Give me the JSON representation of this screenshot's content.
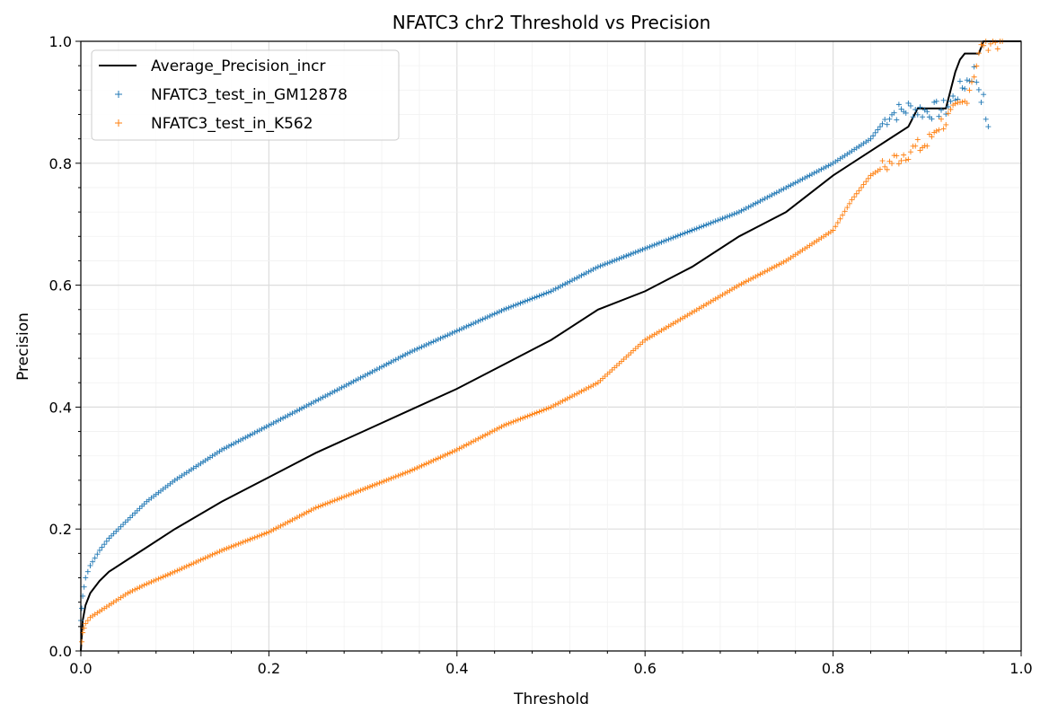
{
  "chart_data": {
    "type": "line",
    "title": "NFATC3 chr2 Threshold vs Precision",
    "xlabel": "Threshold",
    "ylabel": "Precision",
    "xlim": [
      0.0,
      1.0
    ],
    "ylim": [
      0.0,
      1.0
    ],
    "xticks": [
      "0.0",
      "0.2",
      "0.4",
      "0.6",
      "0.8",
      "1.0"
    ],
    "yticks": [
      "0.0",
      "0.2",
      "0.4",
      "0.6",
      "0.8",
      "1.0"
    ],
    "grid": true,
    "legend_position": "top-left",
    "series": [
      {
        "name": "Average_Precision_incr",
        "kind": "line",
        "color": "#000000",
        "points": [
          [
            0.0,
            0.0
          ],
          [
            0.002,
            0.05
          ],
          [
            0.005,
            0.075
          ],
          [
            0.01,
            0.095
          ],
          [
            0.02,
            0.115
          ],
          [
            0.03,
            0.13
          ],
          [
            0.05,
            0.15
          ],
          [
            0.07,
            0.17
          ],
          [
            0.1,
            0.2
          ],
          [
            0.15,
            0.245
          ],
          [
            0.2,
            0.285
          ],
          [
            0.25,
            0.325
          ],
          [
            0.3,
            0.36
          ],
          [
            0.35,
            0.395
          ],
          [
            0.4,
            0.43
          ],
          [
            0.45,
            0.47
          ],
          [
            0.5,
            0.51
          ],
          [
            0.55,
            0.56
          ],
          [
            0.6,
            0.59
          ],
          [
            0.65,
            0.63
          ],
          [
            0.7,
            0.68
          ],
          [
            0.75,
            0.72
          ],
          [
            0.8,
            0.78
          ],
          [
            0.82,
            0.8
          ],
          [
            0.84,
            0.82
          ],
          [
            0.86,
            0.84
          ],
          [
            0.88,
            0.86
          ],
          [
            0.89,
            0.89
          ],
          [
            0.91,
            0.89
          ],
          [
            0.92,
            0.89
          ],
          [
            0.925,
            0.92
          ],
          [
            0.93,
            0.95
          ],
          [
            0.935,
            0.97
          ],
          [
            0.94,
            0.98
          ],
          [
            0.955,
            0.98
          ],
          [
            0.96,
            1.0
          ],
          [
            1.0,
            1.0
          ]
        ]
      },
      {
        "name": "NFATC3_test_in_GM12878",
        "kind": "scatter",
        "marker": "+",
        "color": "#1f77b4",
        "points": [
          [
            0.0,
            0.05
          ],
          [
            0.002,
            0.09
          ],
          [
            0.005,
            0.12
          ],
          [
            0.01,
            0.14
          ],
          [
            0.02,
            0.165
          ],
          [
            0.03,
            0.185
          ],
          [
            0.05,
            0.215
          ],
          [
            0.07,
            0.245
          ],
          [
            0.1,
            0.28
          ],
          [
            0.15,
            0.33
          ],
          [
            0.2,
            0.37
          ],
          [
            0.25,
            0.41
          ],
          [
            0.3,
            0.45
          ],
          [
            0.35,
            0.49
          ],
          [
            0.4,
            0.525
          ],
          [
            0.45,
            0.56
          ],
          [
            0.5,
            0.59
          ],
          [
            0.55,
            0.63
          ],
          [
            0.6,
            0.66
          ],
          [
            0.65,
            0.69
          ],
          [
            0.7,
            0.72
          ],
          [
            0.75,
            0.76
          ],
          [
            0.8,
            0.8
          ],
          [
            0.82,
            0.82
          ],
          [
            0.84,
            0.84
          ],
          [
            0.86,
            0.88
          ],
          [
            0.88,
            0.89
          ],
          [
            0.9,
            0.885
          ],
          [
            0.92,
            0.89
          ],
          [
            0.94,
            0.93
          ],
          [
            0.95,
            0.95
          ],
          [
            0.96,
            0.9
          ],
          [
            0.965,
            0.86
          ]
        ]
      },
      {
        "name": "NFATC3_test_in_K562",
        "kind": "scatter",
        "marker": "+",
        "color": "#ff7f0e",
        "points": [
          [
            0.0,
            0.0
          ],
          [
            0.002,
            0.03
          ],
          [
            0.005,
            0.045
          ],
          [
            0.01,
            0.055
          ],
          [
            0.02,
            0.065
          ],
          [
            0.03,
            0.075
          ],
          [
            0.05,
            0.095
          ],
          [
            0.07,
            0.11
          ],
          [
            0.1,
            0.13
          ],
          [
            0.15,
            0.165
          ],
          [
            0.2,
            0.195
          ],
          [
            0.25,
            0.235
          ],
          [
            0.3,
            0.265
          ],
          [
            0.35,
            0.295
          ],
          [
            0.4,
            0.33
          ],
          [
            0.45,
            0.37
          ],
          [
            0.5,
            0.4
          ],
          [
            0.55,
            0.44
          ],
          [
            0.6,
            0.51
          ],
          [
            0.65,
            0.555
          ],
          [
            0.7,
            0.6
          ],
          [
            0.75,
            0.64
          ],
          [
            0.8,
            0.69
          ],
          [
            0.82,
            0.74
          ],
          [
            0.84,
            0.78
          ],
          [
            0.86,
            0.8
          ],
          [
            0.88,
            0.82
          ],
          [
            0.9,
            0.83
          ],
          [
            0.91,
            0.86
          ],
          [
            0.92,
            0.87
          ],
          [
            0.94,
            0.9
          ],
          [
            0.96,
            1.0
          ],
          [
            0.98,
            1.0
          ]
        ]
      }
    ]
  }
}
